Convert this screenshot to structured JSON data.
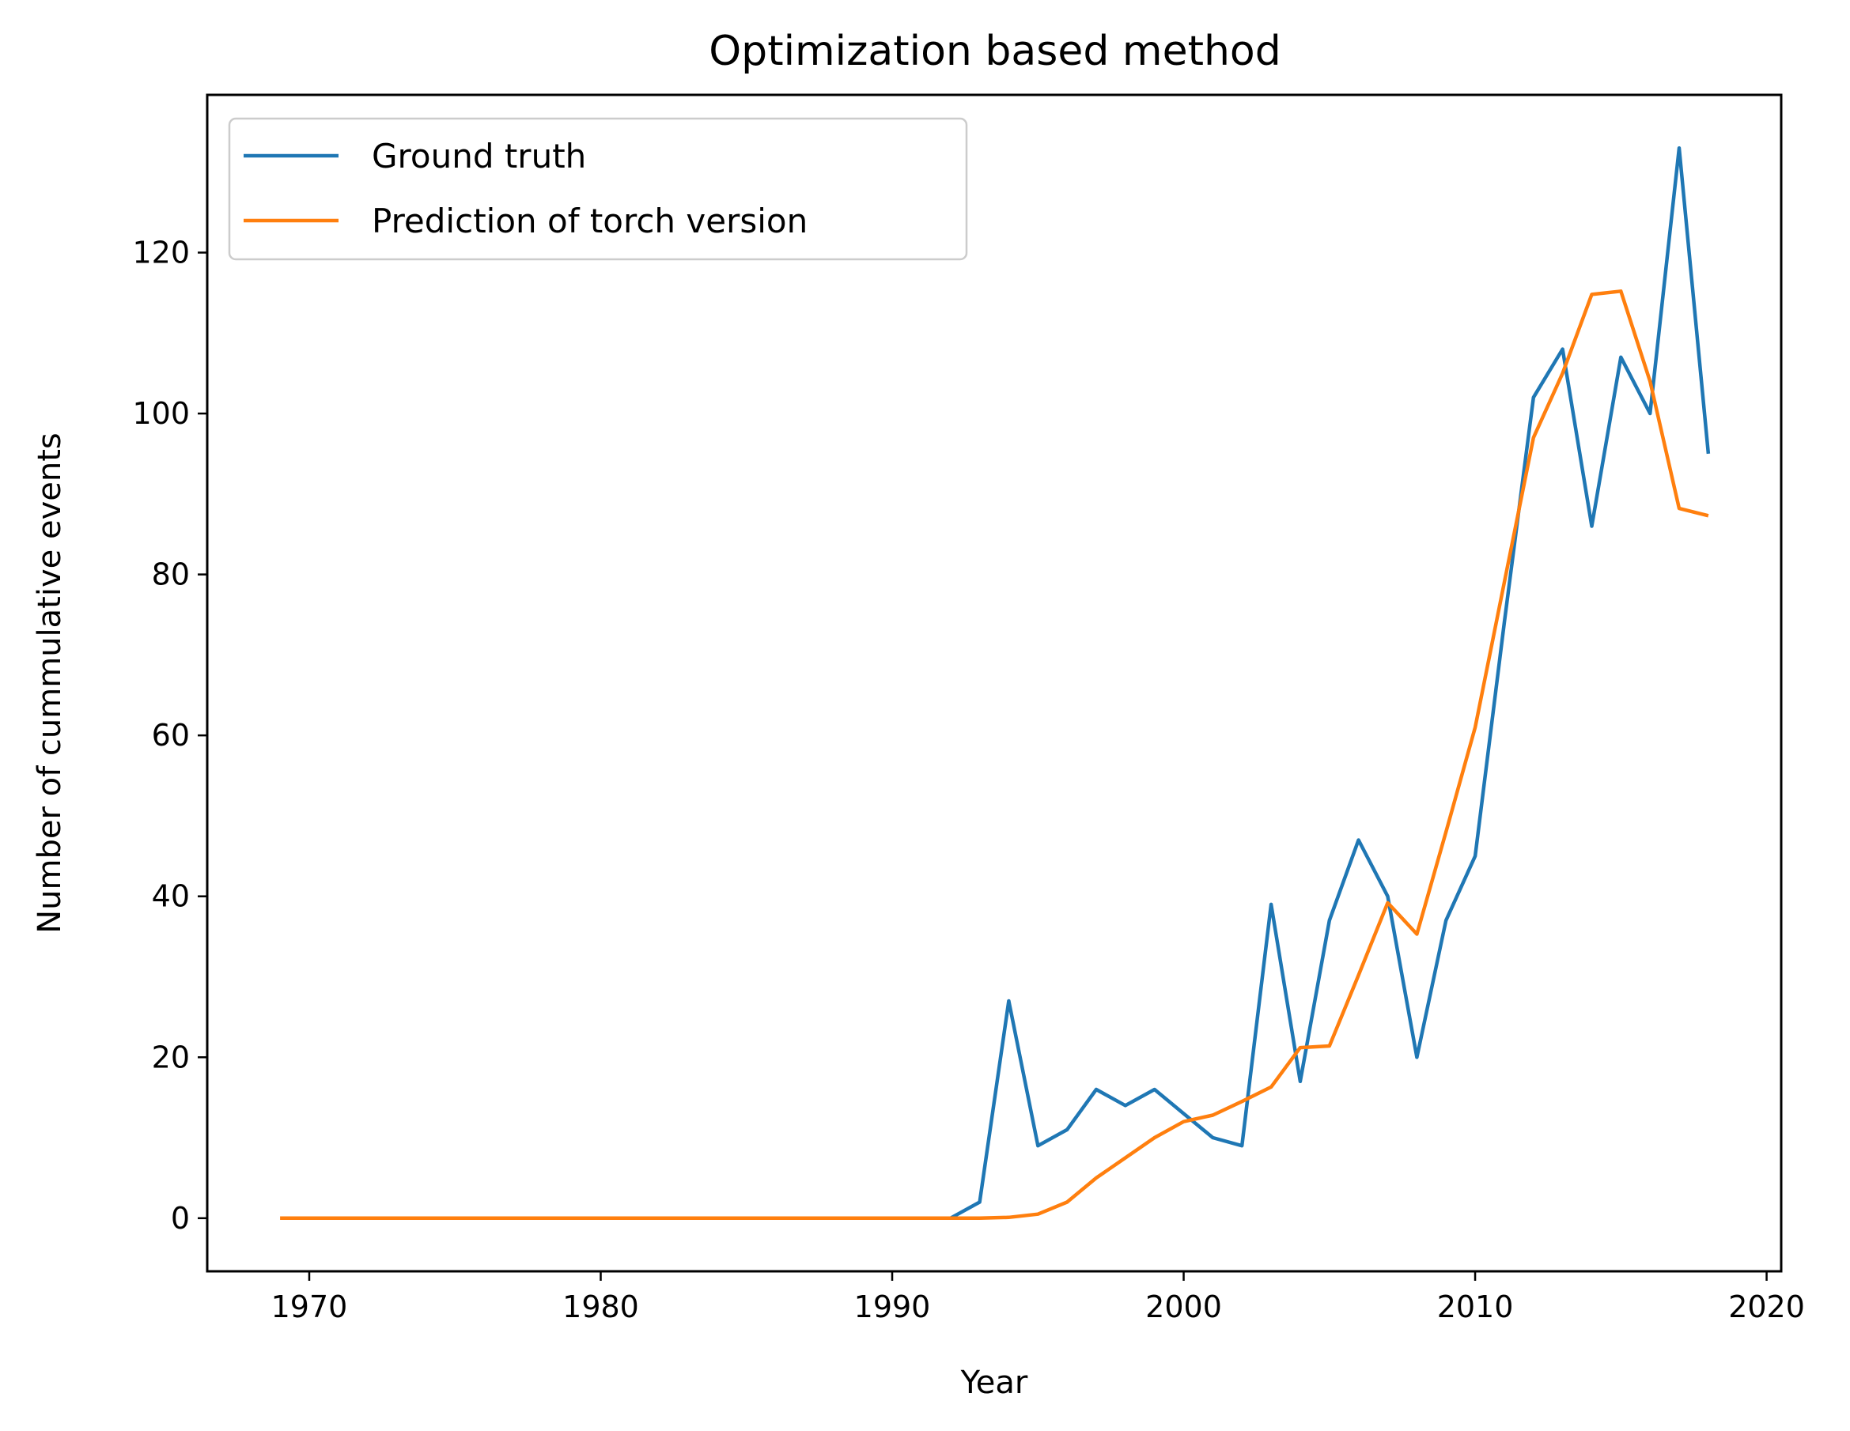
{
  "chart_data": {
    "type": "line",
    "title": "Optimization based method",
    "xlabel": "Year",
    "ylabel": "Number of cummulative events",
    "xlim": [
      1966.5,
      2020.5
    ],
    "ylim": [
      -6.6,
      139.6
    ],
    "xticks": [
      1970,
      1980,
      1990,
      2000,
      2010,
      2020
    ],
    "yticks": [
      0,
      20,
      40,
      60,
      80,
      100,
      120
    ],
    "grid": false,
    "legend_position": "top-left",
    "series": [
      {
        "name": "Ground truth",
        "color": "#1f77b4",
        "x": [
          1992,
          1993,
          1994,
          1995,
          1996,
          1997,
          1998,
          1999,
          2000,
          2001,
          2002,
          2003,
          2004,
          2005,
          2006,
          2007,
          2008,
          2009,
          2010,
          2011,
          2012,
          2013,
          2014,
          2015,
          2016,
          2017,
          2018
        ],
        "y": [
          0,
          2,
          27,
          9,
          11,
          16,
          14,
          16,
          13,
          10,
          9,
          39,
          17,
          37,
          47,
          40,
          20,
          37,
          45,
          74,
          102,
          108,
          86,
          107,
          100,
          133,
          95
        ]
      },
      {
        "name": "Prediction of torch version",
        "color": "#ff7f0e",
        "x": [
          1969,
          1970,
          1971,
          1972,
          1973,
          1974,
          1975,
          1976,
          1977,
          1978,
          1979,
          1980,
          1981,
          1982,
          1983,
          1984,
          1985,
          1986,
          1987,
          1988,
          1989,
          1990,
          1991,
          1992,
          1993,
          1994,
          1995,
          1996,
          1997,
          1998,
          1999,
          2000,
          2001,
          2002,
          2003,
          2004,
          2005,
          2006,
          2007,
          2008,
          2009,
          2010,
          2011,
          2012,
          2013,
          2014,
          2015,
          2016,
          2017,
          2018
        ],
        "y": [
          0,
          0,
          0,
          0,
          0,
          0,
          0,
          0,
          0,
          0,
          0,
          0,
          0,
          0,
          0,
          0,
          0,
          0,
          0,
          0,
          0,
          0,
          0,
          0,
          0,
          0.1,
          0.5,
          2,
          5,
          7.5,
          10,
          12,
          12.8,
          14.5,
          16.3,
          21.2,
          21.4,
          30.2,
          39.2,
          35.3,
          48,
          61,
          79,
          97,
          105,
          114.8,
          115.2,
          104,
          88.2,
          87.3
        ]
      }
    ]
  }
}
